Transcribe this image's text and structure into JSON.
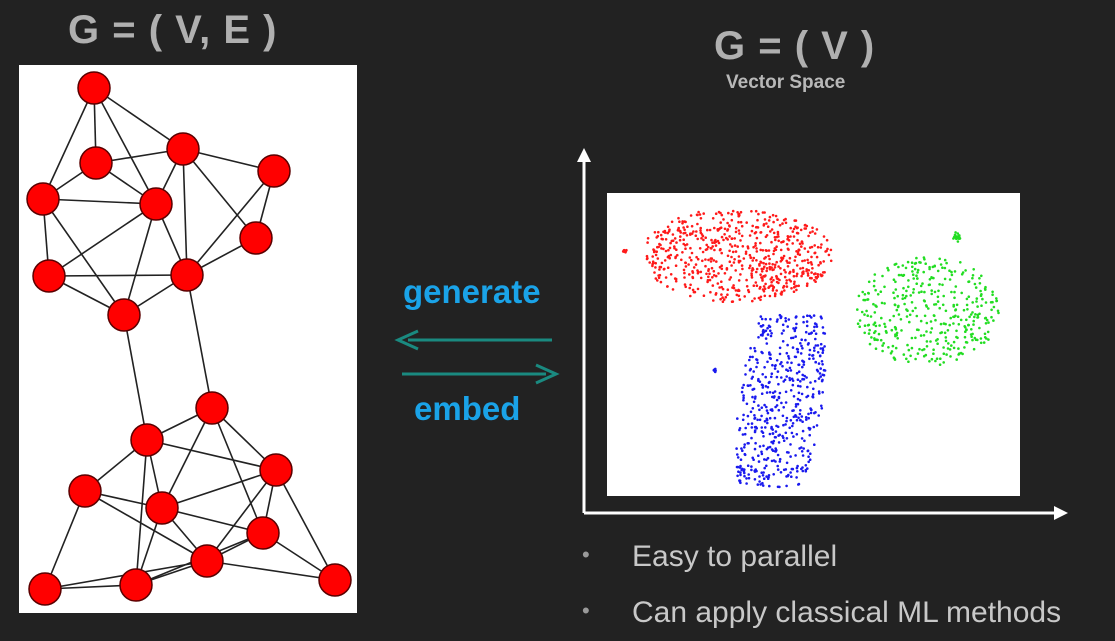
{
  "left": {
    "title": "G = ( V, E )"
  },
  "right": {
    "title": "G = ( V )",
    "subtitle": "Vector Space"
  },
  "arrows": {
    "generate_label": "generate",
    "embed_label": "embed",
    "color": "#1a8a80"
  },
  "bullets": [
    "Easy to parallel",
    "Can apply classical ML methods"
  ],
  "colors": {
    "node_fill": "#ff0000",
    "edge": "#222222",
    "cluster_red": "#ff1a1a",
    "cluster_green": "#22dd22",
    "cluster_blue": "#1a1aee",
    "label_blue": "#1aa3e8"
  }
}
